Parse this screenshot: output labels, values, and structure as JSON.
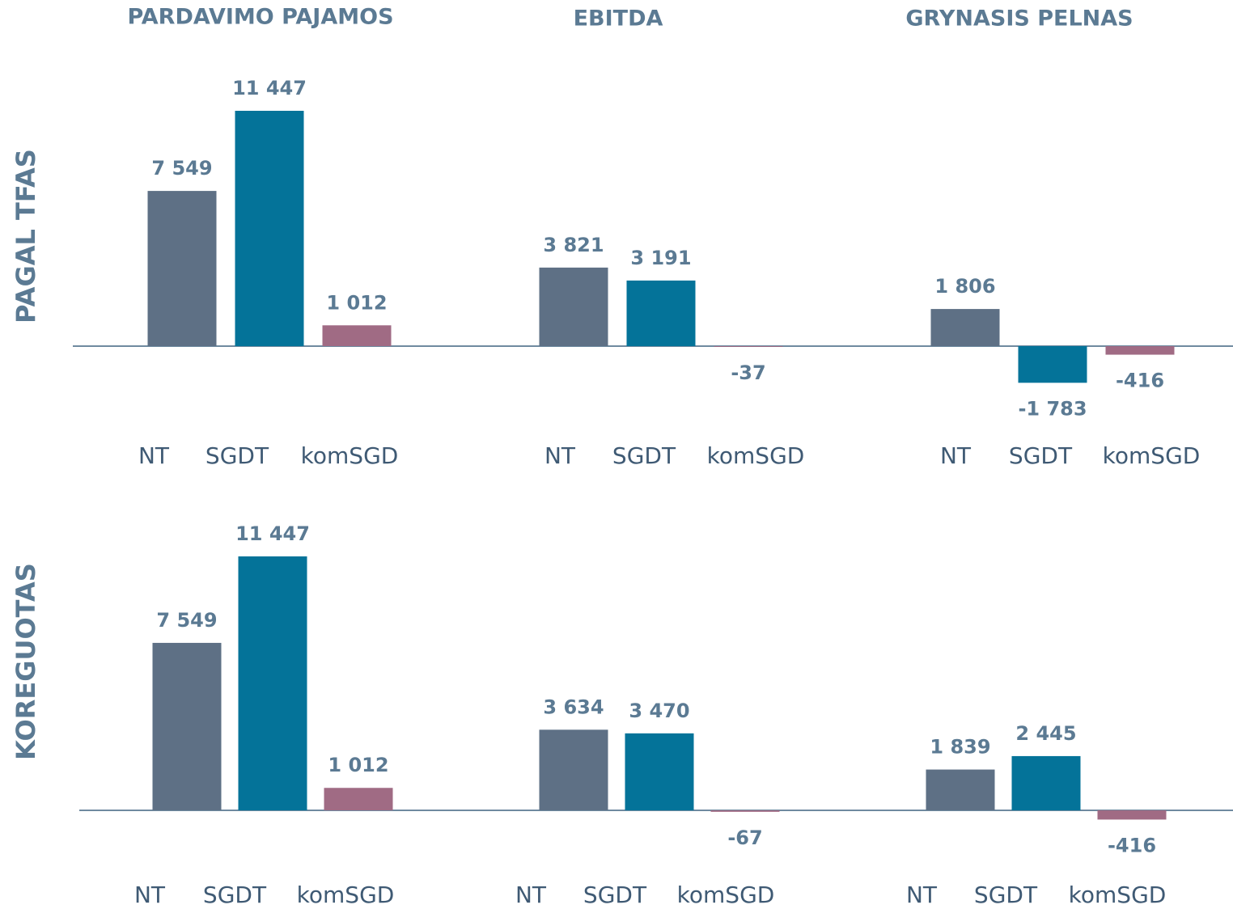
{
  "column_titles": [
    "PARDAVIMO PAJAMOS",
    "EBITDA",
    "GRYNASIS PELNAS"
  ],
  "row_titles": [
    "PAGAL TFAS",
    "KOREGUOTAS"
  ],
  "chart_data": [
    {
      "type": "bar",
      "categories": [
        "NT",
        "SGDT",
        "komSGD"
      ],
      "values": [
        7549,
        11447,
        1012
      ],
      "value_labels": [
        "7 549",
        "11 447",
        "1 012"
      ],
      "colors": [
        "#5e7085",
        "#047399",
        "#a06b84"
      ]
    },
    {
      "type": "bar",
      "categories": [
        "NT",
        "SGDT",
        "komSGD"
      ],
      "values": [
        3821,
        3191,
        -37
      ],
      "value_labels": [
        "3 821",
        "3 191",
        "-37"
      ],
      "colors": [
        "#5e7085",
        "#047399",
        "#a06b84"
      ]
    },
    {
      "type": "bar",
      "categories": [
        "NT",
        "SGDT",
        "komSGD"
      ],
      "values": [
        1806,
        -1783,
        -416
      ],
      "value_labels": [
        "1 806",
        "-1 783",
        "-416"
      ],
      "colors": [
        "#5e7085",
        "#047399",
        "#a06b84"
      ]
    },
    {
      "type": "bar",
      "categories": [
        "NT",
        "SGDT",
        "komSGD"
      ],
      "values": [
        7549,
        11447,
        1012
      ],
      "value_labels": [
        "7 549",
        "11 447",
        "1 012"
      ],
      "colors": [
        "#5e7085",
        "#047399",
        "#a06b84"
      ]
    },
    {
      "type": "bar",
      "categories": [
        "NT",
        "SGDT",
        "komSGD"
      ],
      "values": [
        3634,
        3470,
        -67
      ],
      "value_labels": [
        "3 634",
        "3 470",
        "-67"
      ],
      "colors": [
        "#5e7085",
        "#047399",
        "#a06b84"
      ]
    },
    {
      "type": "bar",
      "categories": [
        "NT",
        "SGDT",
        "komSGD"
      ],
      "values": [
        1839,
        2445,
        -416
      ],
      "value_labels": [
        "1 839",
        "2 445",
        "-416"
      ],
      "colors": [
        "#5e7085",
        "#047399",
        "#a06b84"
      ]
    }
  ]
}
